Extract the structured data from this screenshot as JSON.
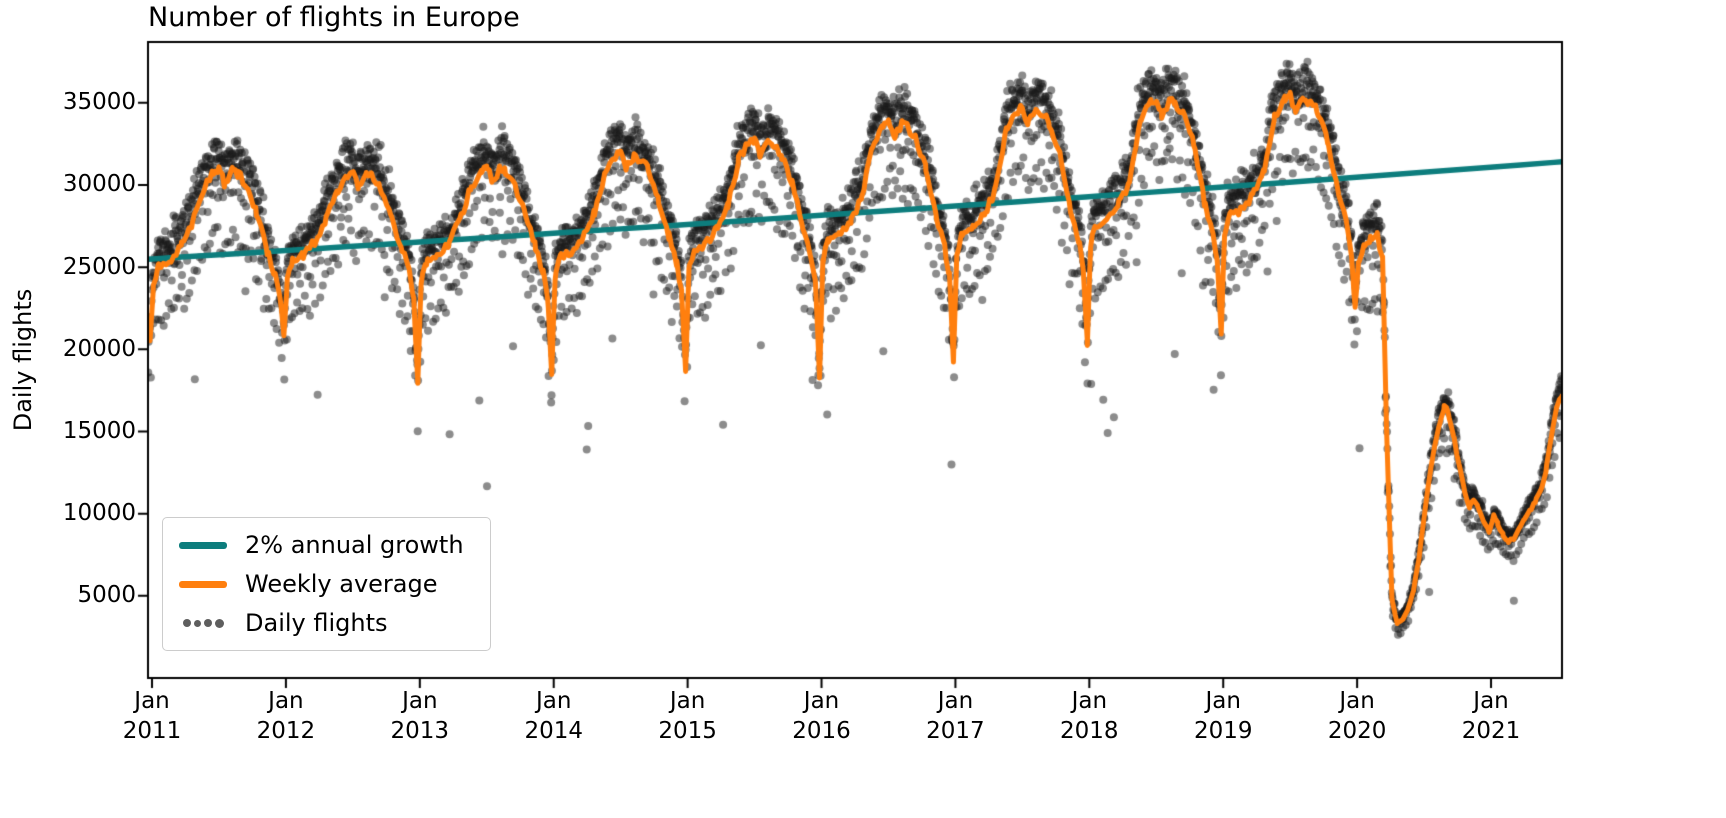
{
  "chart_data": {
    "type": "line+scatter",
    "title": "Number of flights in Europe",
    "xlabel": "",
    "ylabel": "Daily flights",
    "xlim": [
      2010.97,
      2021.53
    ],
    "ylim": [
      0,
      38700
    ],
    "grid": false,
    "yticks": [
      5000,
      10000,
      15000,
      20000,
      25000,
      30000,
      35000
    ],
    "xticks": [
      {
        "month": "Jan",
        "year": "2011"
      },
      {
        "month": "Jan",
        "year": "2012"
      },
      {
        "month": "Jan",
        "year": "2013"
      },
      {
        "month": "Jan",
        "year": "2014"
      },
      {
        "month": "Jan",
        "year": "2015"
      },
      {
        "month": "Jan",
        "year": "2016"
      },
      {
        "month": "Jan",
        "year": "2017"
      },
      {
        "month": "Jan",
        "year": "2018"
      },
      {
        "month": "Jan",
        "year": "2019"
      },
      {
        "month": "Jan",
        "year": "2020"
      },
      {
        "month": "Jan",
        "year": "2021"
      }
    ],
    "legend": {
      "position": "lower left",
      "items": [
        "2% annual growth",
        "Weekly average",
        "Daily flights"
      ]
    },
    "colors": {
      "growth": "#0d7d7d",
      "weekly": "#ff7f0e",
      "daily": "#1a1a1a",
      "spine": "#000000"
    },
    "growth": {
      "label": "2% annual growth",
      "start_year": 2011.0,
      "start_value": 25500,
      "annual_rate": 0.02
    },
    "weekly_anchors": [
      [
        2010.95,
        23500
      ],
      [
        2010.985,
        20500
      ],
      [
        2011.01,
        23900
      ],
      [
        2011.05,
        25100
      ],
      [
        2011.13,
        25400
      ],
      [
        2011.22,
        26300
      ],
      [
        2011.3,
        27700
      ],
      [
        2011.38,
        29700
      ],
      [
        2011.46,
        30800
      ],
      [
        2011.5,
        31000
      ],
      [
        2011.54,
        30100
      ],
      [
        2011.6,
        30900
      ],
      [
        2011.64,
        30700
      ],
      [
        2011.7,
        30100
      ],
      [
        2011.78,
        28300
      ],
      [
        2011.86,
        26000
      ],
      [
        2011.92,
        24500
      ],
      [
        2011.955,
        23200
      ],
      [
        2011.985,
        20900
      ],
      [
        2012.01,
        24200
      ],
      [
        2012.05,
        25400
      ],
      [
        2012.13,
        25700
      ],
      [
        2012.22,
        26600
      ],
      [
        2012.3,
        28000
      ],
      [
        2012.38,
        29600
      ],
      [
        2012.46,
        30700
      ],
      [
        2012.5,
        30900
      ],
      [
        2012.54,
        30000
      ],
      [
        2012.6,
        30800
      ],
      [
        2012.64,
        30600
      ],
      [
        2012.7,
        30000
      ],
      [
        2012.78,
        28200
      ],
      [
        2012.86,
        26300
      ],
      [
        2012.92,
        24800
      ],
      [
        2012.955,
        23000
      ],
      [
        2012.985,
        17900
      ],
      [
        2013.01,
        24100
      ],
      [
        2013.05,
        25300
      ],
      [
        2013.13,
        25600
      ],
      [
        2013.22,
        26500
      ],
      [
        2013.3,
        27900
      ],
      [
        2013.38,
        29800
      ],
      [
        2013.46,
        30900
      ],
      [
        2013.5,
        31100
      ],
      [
        2013.54,
        30200
      ],
      [
        2013.6,
        31000
      ],
      [
        2013.64,
        30800
      ],
      [
        2013.7,
        30200
      ],
      [
        2013.78,
        28400
      ],
      [
        2013.86,
        26400
      ],
      [
        2013.92,
        24700
      ],
      [
        2013.955,
        23100
      ],
      [
        2013.985,
        18400
      ],
      [
        2014.01,
        24400
      ],
      [
        2014.05,
        25600
      ],
      [
        2014.13,
        25900
      ],
      [
        2014.22,
        26800
      ],
      [
        2014.3,
        28200
      ],
      [
        2014.38,
        30600
      ],
      [
        2014.46,
        31700
      ],
      [
        2014.5,
        31900
      ],
      [
        2014.54,
        31000
      ],
      [
        2014.6,
        31800
      ],
      [
        2014.64,
        31600
      ],
      [
        2014.7,
        31000
      ],
      [
        2014.78,
        29200
      ],
      [
        2014.86,
        26900
      ],
      [
        2014.92,
        25200
      ],
      [
        2014.955,
        23500
      ],
      [
        2014.985,
        18800
      ],
      [
        2015.01,
        24900
      ],
      [
        2015.05,
        26100
      ],
      [
        2015.13,
        26400
      ],
      [
        2015.22,
        27300
      ],
      [
        2015.3,
        28700
      ],
      [
        2015.38,
        31500
      ],
      [
        2015.46,
        32600
      ],
      [
        2015.5,
        32800
      ],
      [
        2015.54,
        31900
      ],
      [
        2015.6,
        32700
      ],
      [
        2015.64,
        32500
      ],
      [
        2015.7,
        31900
      ],
      [
        2015.78,
        30100
      ],
      [
        2015.86,
        27400
      ],
      [
        2015.92,
        25700
      ],
      [
        2015.955,
        24000
      ],
      [
        2015.985,
        18300
      ],
      [
        2016.01,
        25400
      ],
      [
        2016.05,
        26600
      ],
      [
        2016.13,
        26900
      ],
      [
        2016.22,
        27800
      ],
      [
        2016.3,
        29200
      ],
      [
        2016.38,
        32500
      ],
      [
        2016.46,
        33600
      ],
      [
        2016.5,
        33800
      ],
      [
        2016.54,
        32900
      ],
      [
        2016.6,
        33700
      ],
      [
        2016.64,
        33500
      ],
      [
        2016.7,
        32900
      ],
      [
        2016.78,
        31100
      ],
      [
        2016.86,
        27900
      ],
      [
        2016.92,
        26200
      ],
      [
        2016.955,
        24500
      ],
      [
        2016.985,
        19200
      ],
      [
        2017.01,
        25900
      ],
      [
        2017.05,
        27100
      ],
      [
        2017.13,
        27400
      ],
      [
        2017.22,
        28300
      ],
      [
        2017.3,
        29700
      ],
      [
        2017.38,
        33400
      ],
      [
        2017.46,
        34500
      ],
      [
        2017.5,
        34700
      ],
      [
        2017.54,
        33800
      ],
      [
        2017.6,
        34600
      ],
      [
        2017.64,
        34400
      ],
      [
        2017.7,
        33800
      ],
      [
        2017.78,
        32000
      ],
      [
        2017.86,
        28400
      ],
      [
        2017.92,
        26700
      ],
      [
        2017.955,
        25000
      ],
      [
        2017.985,
        20300
      ],
      [
        2018.01,
        26400
      ],
      [
        2018.05,
        27600
      ],
      [
        2018.13,
        27900
      ],
      [
        2018.22,
        28800
      ],
      [
        2018.3,
        30200
      ],
      [
        2018.38,
        33900
      ],
      [
        2018.46,
        35000
      ],
      [
        2018.5,
        35200
      ],
      [
        2018.54,
        34300
      ],
      [
        2018.6,
        35100
      ],
      [
        2018.64,
        34900
      ],
      [
        2018.7,
        34300
      ],
      [
        2018.78,
        32500
      ],
      [
        2018.86,
        28900
      ],
      [
        2018.92,
        27200
      ],
      [
        2018.955,
        25500
      ],
      [
        2018.985,
        21100
      ],
      [
        2019.01,
        26900
      ],
      [
        2019.05,
        28100
      ],
      [
        2019.13,
        28400
      ],
      [
        2019.22,
        29300
      ],
      [
        2019.3,
        30700
      ],
      [
        2019.38,
        34100
      ],
      [
        2019.46,
        35200
      ],
      [
        2019.5,
        35400
      ],
      [
        2019.54,
        34500
      ],
      [
        2019.6,
        35300
      ],
      [
        2019.64,
        35100
      ],
      [
        2019.7,
        34500
      ],
      [
        2019.78,
        32700
      ],
      [
        2019.86,
        29400
      ],
      [
        2019.92,
        27700
      ],
      [
        2019.955,
        26000
      ],
      [
        2019.985,
        22600
      ],
      [
        2020.01,
        25300
      ],
      [
        2020.05,
        26300
      ],
      [
        2020.1,
        26800
      ],
      [
        2020.15,
        26900
      ],
      [
        2020.19,
        25500
      ],
      [
        2020.22,
        15000
      ],
      [
        2020.26,
        4800
      ],
      [
        2020.3,
        3300
      ],
      [
        2020.34,
        3600
      ],
      [
        2020.38,
        4200
      ],
      [
        2020.42,
        5300
      ],
      [
        2020.46,
        7200
      ],
      [
        2020.5,
        9800
      ],
      [
        2020.54,
        12200
      ],
      [
        2020.58,
        14200
      ],
      [
        2020.62,
        15600
      ],
      [
        2020.65,
        16500
      ],
      [
        2020.68,
        16200
      ],
      [
        2020.72,
        14800
      ],
      [
        2020.76,
        13000
      ],
      [
        2020.8,
        11400
      ],
      [
        2020.84,
        10400
      ],
      [
        2020.87,
        10900
      ],
      [
        2020.9,
        10400
      ],
      [
        2020.94,
        9600
      ],
      [
        2020.985,
        8900
      ],
      [
        2021.02,
        9900
      ],
      [
        2021.05,
        9400
      ],
      [
        2021.09,
        8700
      ],
      [
        2021.13,
        8300
      ],
      [
        2021.17,
        8500
      ],
      [
        2021.21,
        9100
      ],
      [
        2021.25,
        9700
      ],
      [
        2021.29,
        10200
      ],
      [
        2021.33,
        10700
      ],
      [
        2021.37,
        11400
      ],
      [
        2021.41,
        12600
      ],
      [
        2021.45,
        14600
      ],
      [
        2021.49,
        16400
      ],
      [
        2021.53,
        17200
      ]
    ],
    "scatter": {
      "seed": 7,
      "opacity": 0.5,
      "dot_radius": 4,
      "noise_sd": 520,
      "dow_offsets": [
        500,
        800,
        1000,
        1100,
        1200,
        -3400,
        -900
      ],
      "outlier_prob": 0.008,
      "outlier_drop": [
        3000,
        15000
      ],
      "weekly_jitter": 240
    }
  }
}
